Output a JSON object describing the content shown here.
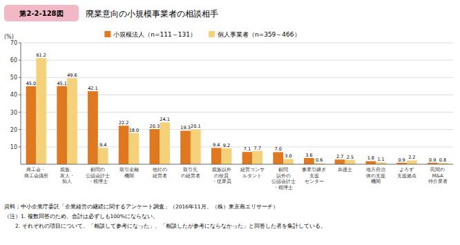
{
  "chart_data": {
    "type": "bar",
    "title": "廃業意向の小規模事業者の相談相手",
    "figure_label": "第2-2-128図",
    "ylabel": "(%)",
    "categories": [
      "商工会・\n商工会議所",
      "親族、\n友人・\n知人",
      "顧問の\n公認会計士\n・税理士",
      "取引金融\n機関",
      "他社の\n経営者",
      "取引先\nの経営者",
      "親族以外\nの役員\n・従業員",
      "経営コンサ\nルタント",
      "顧問\n以外の\n公認会計士\n・税理士",
      "事業引継ぎ\n支援\nセンター",
      "弁護士",
      "地方自治\n体の支援\n機関",
      "よろず\n支援拠点",
      "民間の\nM&A\n仲介業者"
    ],
    "series": [
      {
        "name": "小規模法人（n=111～131）",
        "color": "#E07820",
        "values": [
          45.0,
          45.1,
          42.1,
          22.2,
          20.3,
          19.3,
          9.4,
          7.1,
          7.0,
          3.6,
          2.7,
          1.8,
          0.9,
          0.9
        ],
        "value_labels": [
          "45.0",
          "45.1",
          "42.1",
          "22.2",
          "20.3",
          "19.3",
          "9.4",
          "7.1",
          "7.0",
          "3.6",
          "2.7",
          "1.8",
          "0.9",
          "0.9"
        ]
      },
      {
        "name": "個人事業者（n=359～466）",
        "color": "#F5D27A",
        "values": [
          61.2,
          49.6,
          9.4,
          18.0,
          24.1,
          20.1,
          9.2,
          7.7,
          3.0,
          0.6,
          2.5,
          1.1,
          2.2,
          0.8
        ],
        "value_labels": [
          "61.2",
          "49.6",
          "9.4",
          "18.0",
          "24.1",
          "20.1",
          "9.2",
          "7.7",
          "3.0",
          "0.6",
          "2.5",
          "1.1",
          "2.2",
          "0.8"
        ]
      }
    ],
    "ylim": [
      0,
      70
    ],
    "yticks": [
      10,
      20,
      30,
      40,
      50,
      60,
      70
    ],
    "grid": true,
    "legend": "top",
    "data_labels": true,
    "footnotes": [
      "資料：中小企業庁委託「企業経営の継続に関するアンケート調査」（2016年11月、（株）東京商エリサーチ）",
      "（注）1. 複数回答のため、合計は必ずしも100%にならない。",
      "　　2. それぞれの項目について、「相談して参考になった」、「相談したが参考にならなかった」と回答した者を集計している。"
    ]
  }
}
